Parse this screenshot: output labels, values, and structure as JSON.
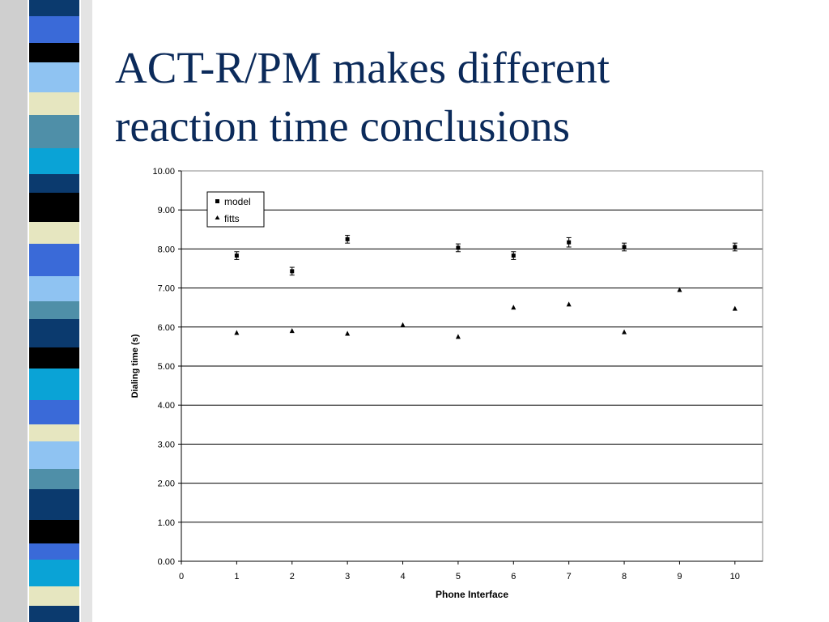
{
  "slide": {
    "title_lines": [
      "ACT-R/PM makes different",
      "reaction time conclusions"
    ],
    "colors": {
      "title": "#0b2a5a",
      "banner": [
        "#0b3a6e",
        "#3a6ad8",
        "#8fc3f2",
        "#0aa3d6",
        "#e6e6c0",
        "#000000",
        "#4f8fa8"
      ]
    }
  },
  "chart_data": {
    "type": "scatter",
    "title": "",
    "xlabel": "Phone Interface",
    "ylabel": "Dialing time (s)",
    "xlim": [
      0,
      10.5
    ],
    "ylim": [
      0,
      10
    ],
    "x_ticks": [
      "0",
      "1",
      "2",
      "3",
      "4",
      "5",
      "6",
      "7",
      "8",
      "9",
      "10"
    ],
    "y_ticks": [
      "0.00",
      "1.00",
      "2.00",
      "3.00",
      "4.00",
      "5.00",
      "6.00",
      "7.00",
      "8.00",
      "9.00",
      "10.00"
    ],
    "grid": "horizontal",
    "legend_position": "top-left",
    "series": [
      {
        "name": "model",
        "marker": "square",
        "x": [
          1,
          2,
          3,
          5,
          6,
          7,
          8,
          10
        ],
        "y": [
          7.83,
          7.43,
          8.25,
          8.03,
          7.83,
          8.17,
          8.05,
          8.05
        ],
        "error": [
          0.1,
          0.1,
          0.1,
          0.1,
          0.1,
          0.12,
          0.1,
          0.1
        ]
      },
      {
        "name": "fitts",
        "marker": "triangle",
        "x": [
          1,
          2,
          3,
          4,
          5,
          6,
          7,
          8,
          9,
          10
        ],
        "y": [
          5.85,
          5.9,
          5.83,
          6.05,
          5.75,
          6.5,
          6.58,
          5.87,
          6.95,
          6.47
        ]
      }
    ]
  }
}
